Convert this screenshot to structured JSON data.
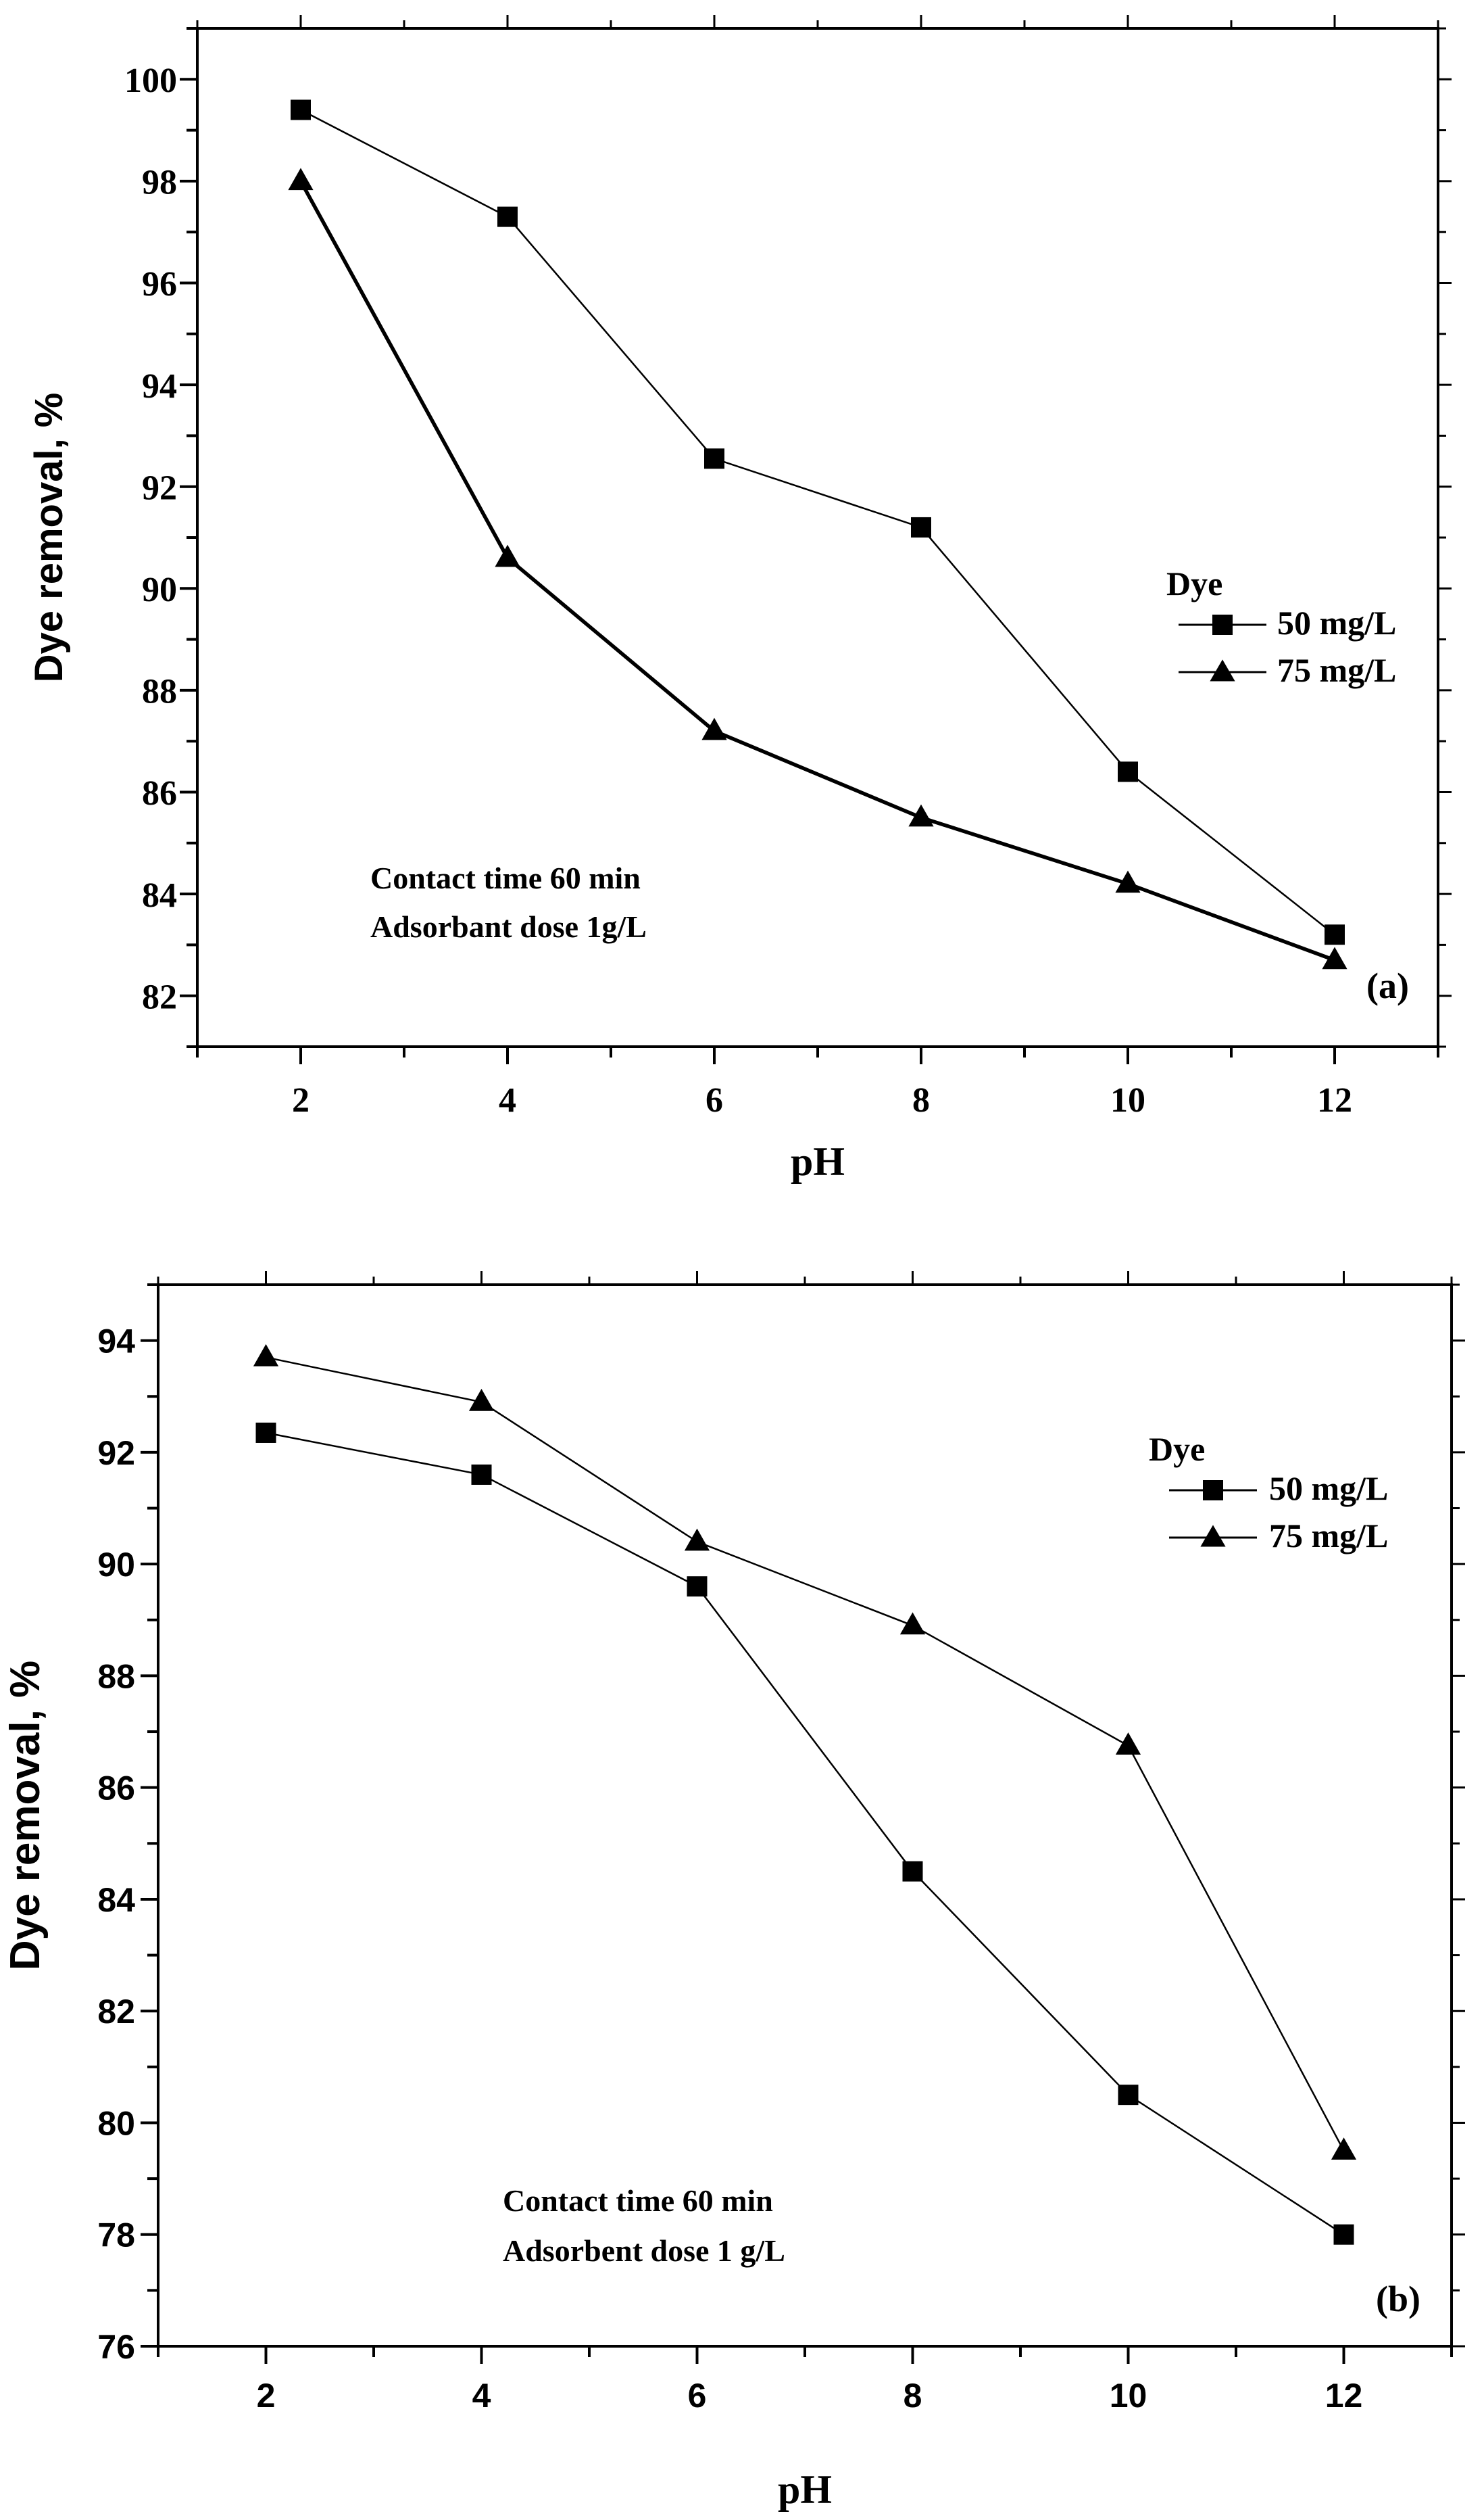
{
  "chart_data": [
    {
      "type": "line",
      "panel_label": "(a)",
      "xlabel": "pH",
      "ylabel": "Dye removal, %",
      "xlim": [
        1,
        13
      ],
      "ylim": [
        81,
        101
      ],
      "x_ticks": [
        2,
        4,
        6,
        8,
        10,
        12
      ],
      "y_ticks": [
        82,
        84,
        86,
        88,
        90,
        92,
        94,
        96,
        98,
        100
      ],
      "grid": false,
      "legend_title": "Dye",
      "legend_position": "right",
      "annotation": [
        "Contact time 60 min",
        "Adsorbant dose 1g/L"
      ],
      "series": [
        {
          "name": "50 mg/L",
          "marker": "square",
          "x": [
            2,
            4,
            6,
            8,
            10,
            12
          ],
          "values": [
            99.4,
            97.3,
            92.55,
            91.2,
            86.4,
            83.2
          ]
        },
        {
          "name": "75 mg/L",
          "marker": "triangle",
          "x": [
            2,
            4,
            6,
            8,
            10,
            12
          ],
          "values": [
            98.0,
            90.6,
            87.2,
            85.5,
            84.2,
            82.7
          ]
        }
      ]
    },
    {
      "type": "line",
      "panel_label": "(b)",
      "xlabel": "pH",
      "ylabel": "Dye removal, %",
      "xlim": [
        1,
        13
      ],
      "ylim": [
        76,
        95
      ],
      "x_ticks": [
        2,
        4,
        6,
        8,
        10,
        12
      ],
      "y_ticks": [
        76,
        78,
        80,
        82,
        84,
        86,
        88,
        90,
        92,
        94
      ],
      "grid": false,
      "legend_title": "Dye",
      "legend_position": "top-right",
      "annotation": [
        "Contact time 60 min",
        "Adsorbent dose 1 g/L"
      ],
      "series": [
        {
          "name": "50 mg/L",
          "marker": "square",
          "x": [
            2,
            4,
            6,
            8,
            10,
            12
          ],
          "values": [
            92.35,
            91.6,
            89.6,
            84.5,
            80.5,
            78.0
          ]
        },
        {
          "name": "75 mg/L",
          "marker": "triangle",
          "x": [
            2,
            4,
            6,
            8,
            10,
            12
          ],
          "values": [
            93.7,
            92.9,
            90.4,
            88.9,
            86.75,
            79.5
          ]
        }
      ]
    }
  ]
}
